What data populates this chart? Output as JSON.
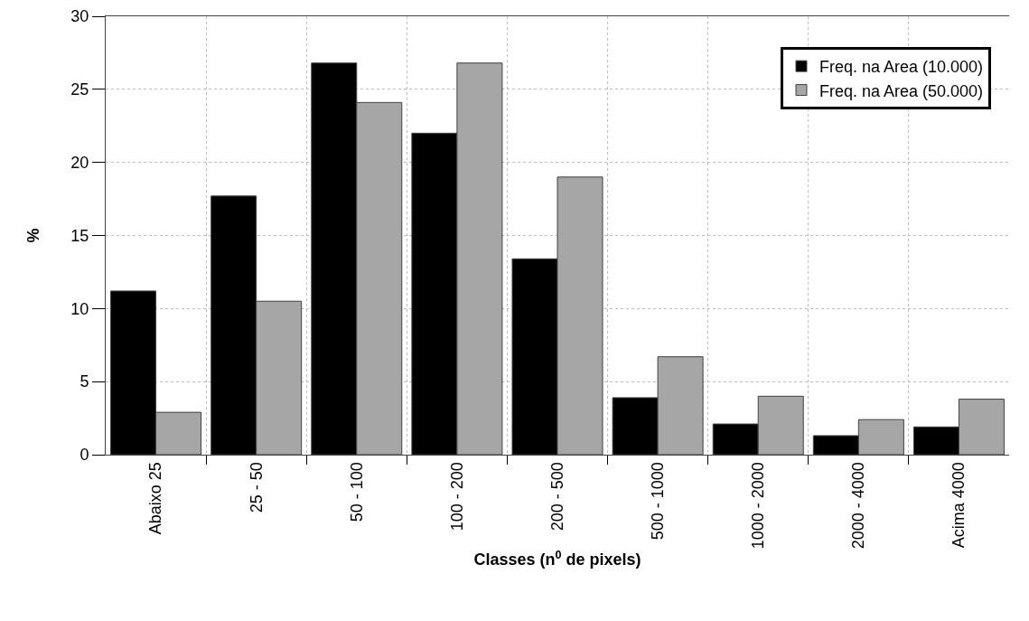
{
  "chart_data": {
    "type": "bar",
    "xlabel": "Classes (n$^{0}$ de pixels)",
    "ylabel": "%",
    "categories": [
      "Abaixo 25",
      "25 - 50",
      "50 - 100",
      "100 - 200",
      "200 - 500",
      "500 - 1000",
      "1000 - 2000",
      "2000 - 4000",
      "Acima 4000"
    ],
    "series": [
      {
        "name": "Freq. na Area (10.000)",
        "color": "#000000",
        "values": [
          11.2,
          17.7,
          26.8,
          22.0,
          13.4,
          3.9,
          2.1,
          1.3,
          1.9
        ]
      },
      {
        "name": "Freq. na Area (50.000)",
        "color": "#a6a6a6",
        "values": [
          2.9,
          10.5,
          24.1,
          26.8,
          19.0,
          6.7,
          4.0,
          2.4,
          3.8
        ]
      }
    ],
    "ylim": [
      0,
      30
    ],
    "yticks": [
      0,
      5,
      10,
      15,
      20,
      25,
      30
    ],
    "grid": true,
    "legend": "top right"
  }
}
